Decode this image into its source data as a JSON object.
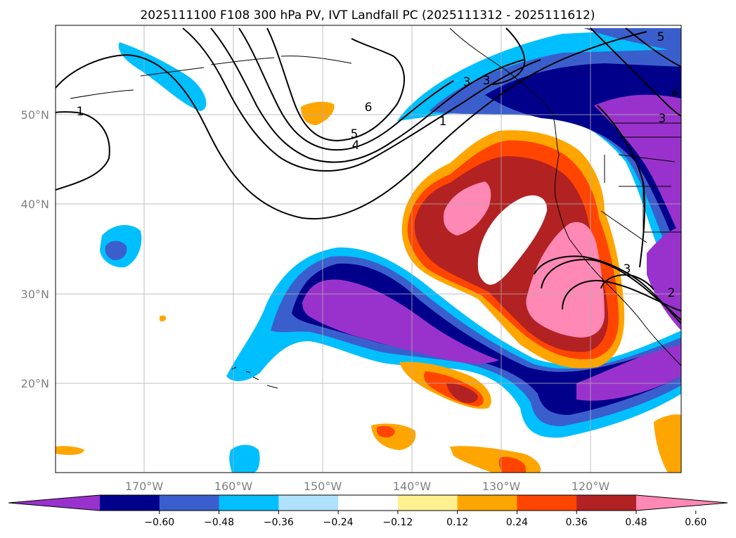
{
  "figure": {
    "title": "2025111100 F108 300 hPa PV, IVT Landfall PC (2025111312 - 2025111612)"
  },
  "map": {
    "projection": "PlateCarree",
    "lon_range": [
      -180,
      -110
    ],
    "lat_range": [
      10,
      60
    ],
    "gridlines": true,
    "lat_ticks": [
      {
        "value": 20,
        "label": "20°N"
      },
      {
        "value": 30,
        "label": "30°N"
      },
      {
        "value": 40,
        "label": "40°N"
      },
      {
        "value": 50,
        "label": "50°N"
      }
    ],
    "lon_ticks": [
      {
        "value": -170,
        "label": "170°W"
      },
      {
        "value": -160,
        "label": "160°W"
      },
      {
        "value": -150,
        "label": "150°W"
      },
      {
        "value": -140,
        "label": "140°W"
      },
      {
        "value": -130,
        "label": "130°W"
      },
      {
        "value": -120,
        "label": "120°W"
      }
    ],
    "pv_contour_labels": [
      "1",
      "1",
      "3",
      "4",
      "5",
      "6",
      "3",
      "4",
      "5",
      "3",
      "2",
      "3"
    ]
  },
  "colorbar": {
    "extend": "both",
    "ticks": [
      "−0.60",
      "−0.48",
      "−0.36",
      "−0.24",
      "−0.12",
      "0.12",
      "0.24",
      "0.36",
      "0.48",
      "0.60"
    ],
    "colors": [
      "#9932cc",
      "#00008b",
      "#3a5fcd",
      "#00bfff",
      "#b0e2ff",
      "#ffffff",
      "#fff08f",
      "#ffa500",
      "#ff4500",
      "#b22222",
      "#ff88b4"
    ]
  },
  "chart_data": {
    "type": "heatmap",
    "title": "2025111100 F108 300 hPa PV, IVT Landfall PC (2025111312 - 2025111612)",
    "xlabel": "",
    "ylabel": "",
    "xlim": [
      -180,
      -110
    ],
    "ylim": [
      10,
      60
    ],
    "levels": [
      -0.6,
      -0.48,
      -0.36,
      -0.24,
      -0.12,
      0.12,
      0.24,
      0.36,
      0.48,
      0.6
    ],
    "overlay": "300 hPa PV contours",
    "pv_contour_levels": [
      1,
      2,
      3,
      4,
      5,
      6
    ]
  }
}
